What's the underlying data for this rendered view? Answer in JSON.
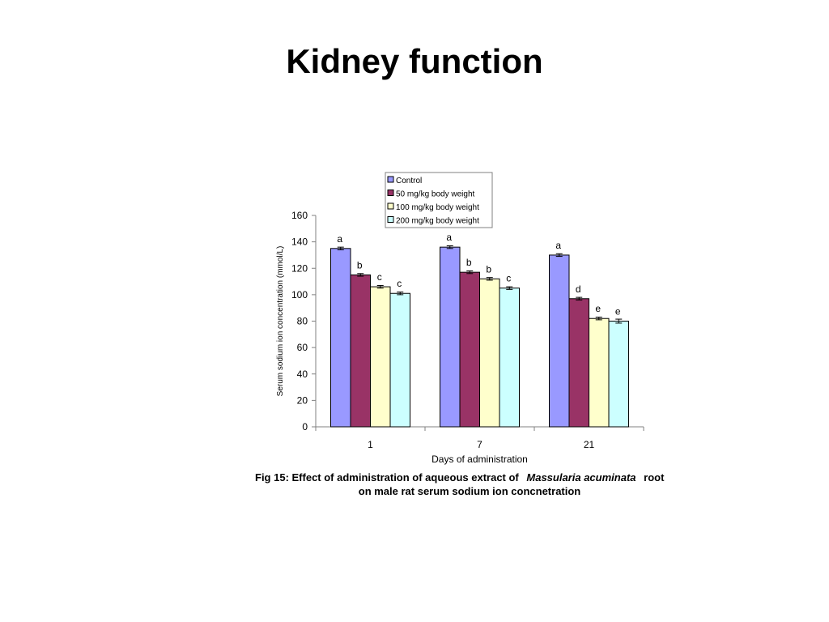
{
  "slide": {
    "title": "Kidney function"
  },
  "caption": {
    "line1_part1": "Fig 15: Effect of administration of aqueous extract of",
    "line1_species": "Massularia acuminata",
    "line1_part2": "root",
    "line2": "on male rat serum sodium ion concnetration"
  },
  "chart_data": {
    "type": "bar",
    "xlabel": "Days of administration",
    "ylabel": "Serum sodium ion concentration (mmol/L)",
    "ylim": [
      0,
      160
    ],
    "yticks": [
      "0",
      "20",
      "40",
      "60",
      "80",
      "100",
      "120",
      "140",
      "160"
    ],
    "categories": [
      "1",
      "7",
      "21"
    ],
    "legend_position": "top-right",
    "series": [
      {
        "name": "Control",
        "color": "#9999ff",
        "values": [
          135,
          136,
          130
        ],
        "errors": [
          1,
          1,
          1
        ],
        "letters": [
          "a",
          "a",
          "a"
        ]
      },
      {
        "name": "50 mg/kg body weight",
        "color": "#993366",
        "values": [
          115,
          117,
          97
        ],
        "errors": [
          1,
          1,
          1
        ],
        "letters": [
          "b",
          "b",
          "d"
        ]
      },
      {
        "name": "100 mg/kg body weight",
        "color": "#ffffcc",
        "values": [
          106,
          112,
          82
        ],
        "errors": [
          1,
          1,
          1
        ],
        "letters": [
          "c",
          "b",
          "e"
        ]
      },
      {
        "name": "200 mg/kg body weight",
        "color": "#ccffff",
        "values": [
          101,
          105,
          80
        ],
        "errors": [
          1,
          1,
          1.5
        ],
        "letters": [
          "c",
          "c",
          "e"
        ]
      }
    ]
  }
}
